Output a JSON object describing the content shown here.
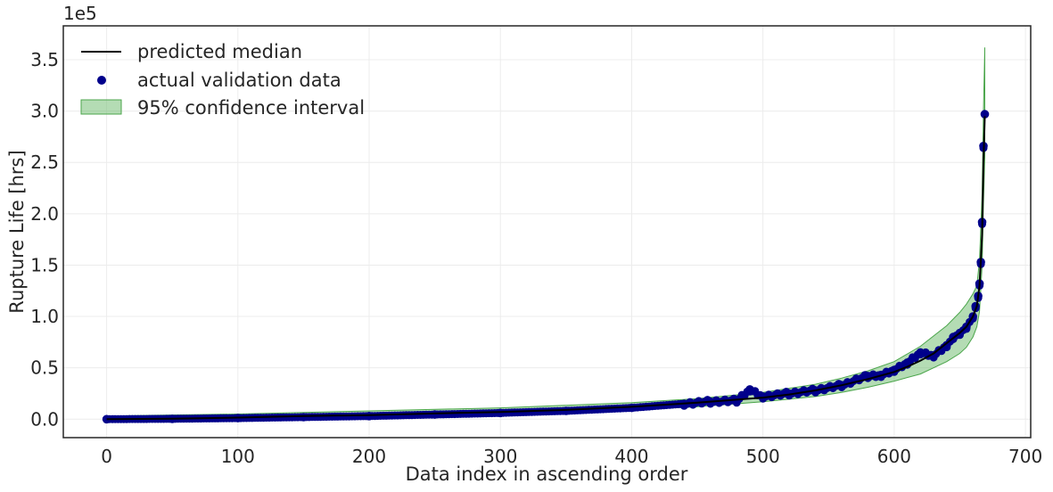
{
  "chart_data": {
    "type": "line",
    "title": "",
    "xlabel": "Data index in ascending order",
    "ylabel": "Rupture Life [hrs]",
    "y_offset_label": "1e5",
    "xlim": [
      -33,
      704
    ],
    "ylim": [
      -0.18,
      3.83
    ],
    "y_scale_factor": 100000,
    "xticks": [
      0,
      100,
      200,
      300,
      400,
      500,
      600,
      700
    ],
    "xtick_labels": [
      "0",
      "100",
      "200",
      "300",
      "400",
      "500",
      "600",
      "700"
    ],
    "yticks": [
      0.0,
      0.5,
      1.0,
      1.5,
      2.0,
      2.5,
      3.0,
      3.5
    ],
    "ytick_labels": [
      "0.0",
      "0.5",
      "1.0",
      "1.5",
      "2.0",
      "2.5",
      "3.0",
      "3.5"
    ],
    "grid": true,
    "legend_position": "top-left",
    "colors": {
      "median": "#000000",
      "points": "#00008b",
      "band_fill": "#6ab96a",
      "band_edge": "#4ca64c",
      "grid": "#ececec",
      "frame": "#262626"
    },
    "series": [
      {
        "name": "predicted median",
        "kind": "line",
        "x": [
          0,
          50,
          100,
          150,
          200,
          250,
          300,
          350,
          400,
          450,
          500,
          520,
          540,
          560,
          580,
          600,
          610,
          620,
          630,
          640,
          650,
          655,
          660,
          663,
          665,
          667,
          668,
          669
        ],
        "y": [
          0.0,
          0.005,
          0.015,
          0.03,
          0.04,
          0.055,
          0.07,
          0.09,
          0.12,
          0.16,
          0.21,
          0.24,
          0.28,
          0.33,
          0.39,
          0.46,
          0.51,
          0.57,
          0.64,
          0.74,
          0.84,
          0.9,
          1.0,
          1.1,
          1.3,
          1.8,
          2.5,
          2.95
        ]
      },
      {
        "name": "actual validation data",
        "kind": "scatter",
        "x": [
          0,
          50,
          100,
          150,
          200,
          250,
          300,
          350,
          400,
          440,
          460,
          480,
          490,
          500,
          520,
          540,
          560,
          580,
          590,
          600,
          610,
          620,
          630,
          640,
          645,
          650,
          655,
          660,
          662,
          664,
          665,
          666,
          667,
          668,
          669
        ],
        "y": [
          0.0,
          0.003,
          0.01,
          0.02,
          0.03,
          0.045,
          0.06,
          0.08,
          0.11,
          0.15,
          0.17,
          0.18,
          0.29,
          0.22,
          0.25,
          0.28,
          0.33,
          0.42,
          0.43,
          0.48,
          0.55,
          0.65,
          0.62,
          0.72,
          0.8,
          0.84,
          0.9,
          1.0,
          1.1,
          1.2,
          1.32,
          1.53,
          1.92,
          2.66,
          2.97
        ]
      },
      {
        "name": "95% confidence interval",
        "kind": "band",
        "x": [
          0,
          100,
          200,
          300,
          400,
          450,
          500,
          540,
          560,
          580,
          600,
          620,
          640,
          650,
          655,
          660,
          663,
          665,
          667,
          668,
          669
        ],
        "lower": [
          -0.02,
          -0.01,
          0.0,
          0.04,
          0.09,
          0.12,
          0.17,
          0.22,
          0.26,
          0.31,
          0.37,
          0.44,
          0.56,
          0.64,
          0.7,
          0.8,
          0.9,
          1.05,
          1.5,
          2.1,
          2.55
        ],
        "upper": [
          0.03,
          0.05,
          0.08,
          0.11,
          0.16,
          0.2,
          0.26,
          0.34,
          0.4,
          0.47,
          0.56,
          0.71,
          0.91,
          1.04,
          1.12,
          1.22,
          1.3,
          1.55,
          2.2,
          3.0,
          3.62
        ]
      }
    ]
  }
}
